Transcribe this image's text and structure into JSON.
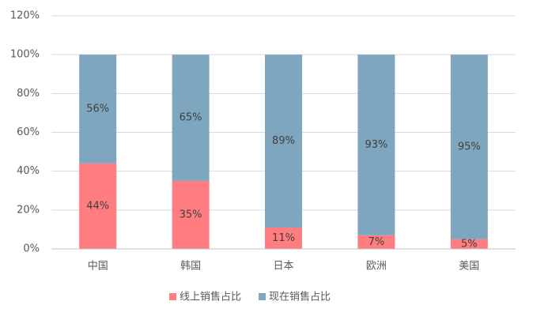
{
  "chart_data": {
    "type": "stacked_bar",
    "categories": [
      "中国",
      "韩国",
      "日本",
      "欧洲",
      "美国"
    ],
    "series": [
      {
        "name": "线上销售占比",
        "color": "#ff7c80",
        "values": [
          44,
          35,
          11,
          7,
          5
        ],
        "value_labels": [
          "44%",
          "35%",
          "11%",
          "7%",
          "5%"
        ]
      },
      {
        "name": "现在销售占比",
        "color": "#7fa6bf",
        "values": [
          56,
          65,
          89,
          93,
          95
        ],
        "value_labels": [
          "56%",
          "65%",
          "89%",
          "93%",
          "95%"
        ]
      }
    ],
    "ylim": [
      0,
      120
    ],
    "yticks": [
      {
        "value": 0,
        "label": "0%"
      },
      {
        "value": 20,
        "label": "20%"
      },
      {
        "value": 40,
        "label": "40%"
      },
      {
        "value": 60,
        "label": "60%"
      },
      {
        "value": 80,
        "label": "80%"
      },
      {
        "value": 100,
        "label": "100%"
      },
      {
        "value": 120,
        "label": "120%"
      }
    ],
    "grid": true,
    "legend": "bottom"
  }
}
